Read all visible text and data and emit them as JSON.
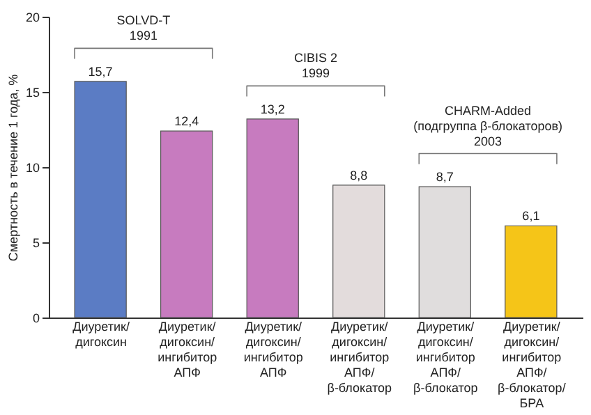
{
  "chart_data": {
    "type": "bar",
    "ylabel": "Смертность в течение 1 года, %",
    "categories": [
      "Диуретик/\nдигоксин",
      "Диуретик/\nдигоксин/\nингибитор\nАПФ",
      "Диуретик/\nдигоксин/\nингибитор\nАПФ",
      "Диуретик/\nдигоксин/\nингибитор\nАПФ/\nβ-блокатор",
      "Диуретик/\nдигоксин/\nингибитор\nАПФ/\nβ-блокатор",
      "Диуретик/\nдигоксин/\nингибитор\nАПФ/\nβ-блокатор/\nБРА"
    ],
    "values": [
      15.7,
      12.4,
      13.2,
      8.8,
      8.7,
      6.1
    ],
    "value_labels": [
      "15,7",
      "12,4",
      "13,2",
      "8,8",
      "8,7",
      "6,1"
    ],
    "colors": [
      "#5b7cc4",
      "#c77bbf",
      "#c77bbf",
      "#e3dcdc",
      "#e0dddd",
      "#f5c518"
    ],
    "ylim": [
      0,
      20
    ],
    "yticks": [
      0,
      5,
      10,
      15,
      20
    ],
    "grid": false,
    "annotations": [
      "SOLVD-T\n1991",
      "CIBIS 2\n1999",
      "CHARM-Added\n(подгруппа β-блокаторов)\n2003"
    ]
  }
}
